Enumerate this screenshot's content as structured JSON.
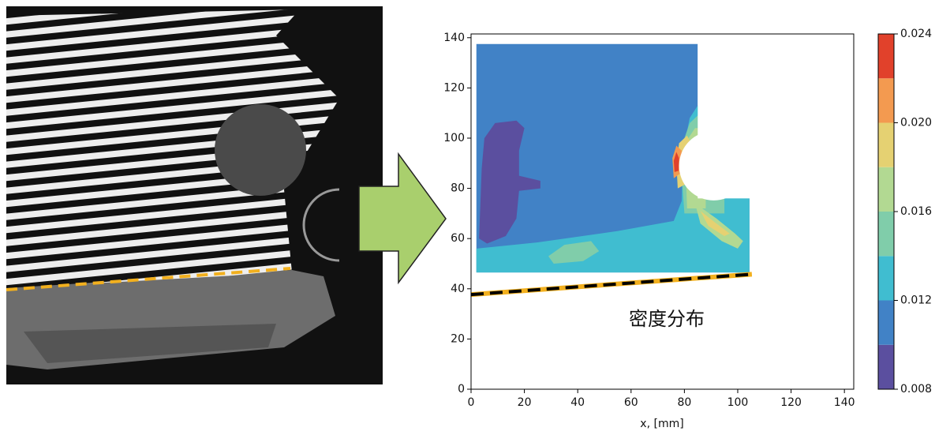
{
  "chart_data": {
    "type": "contour",
    "xlabel": "x, [mm]",
    "annotation": "密度分布",
    "xlim": [
      0,
      143.5
    ],
    "ylim": [
      0,
      141.5
    ],
    "xticks": [
      0,
      20,
      40,
      60,
      80,
      100,
      120,
      140
    ],
    "yticks": [
      0,
      20,
      40,
      60,
      80,
      100,
      120,
      140
    ],
    "colorbar": {
      "levels": [
        0.008,
        0.01,
        0.012,
        0.014,
        0.016,
        0.018,
        0.02,
        0.022,
        0.024
      ],
      "colors": [
        "#5b4f9f",
        "#4182c6",
        "#40bdd0",
        "#80cdaa",
        "#b2d992",
        "#e5d172",
        "#f39a50",
        "#e1412b"
      ],
      "ticks": [
        0.008,
        0.012,
        0.016,
        {
          "value": 0.02,
          "label": "0.020"
        },
        0.024
      ]
    },
    "regions": [
      {
        "value": 0.01,
        "points": [
          [
            2,
            46.5
          ],
          [
            2,
            137.5
          ],
          [
            85,
            137.5
          ],
          [
            85,
            76
          ],
          [
            104.4,
            76
          ],
          [
            104.4,
            46.5
          ]
        ]
      },
      {
        "value": 0.012,
        "points": [
          [
            2,
            46.5
          ],
          [
            2,
            56
          ],
          [
            25,
            58.5
          ],
          [
            55,
            63
          ],
          [
            76,
            67
          ],
          [
            79,
            75
          ],
          [
            79.5,
            95
          ],
          [
            82,
            108
          ],
          [
            85,
            113
          ],
          [
            104.4,
            113
          ],
          [
            104.4,
            46.5
          ]
        ]
      },
      {
        "value": 0.014,
        "points": [
          [
            80,
            70
          ],
          [
            79,
            85
          ],
          [
            80,
            100
          ],
          [
            82,
            106
          ],
          [
            85,
            109
          ],
          [
            95,
            109
          ],
          [
            95,
            70
          ]
        ]
      },
      {
        "value": 0.014,
        "points": [
          [
            29,
            53
          ],
          [
            35,
            57.5
          ],
          [
            45,
            59
          ],
          [
            48,
            55
          ],
          [
            42,
            51
          ],
          [
            31,
            50
          ]
        ]
      },
      {
        "value": 0.016,
        "points": [
          [
            81,
            72
          ],
          [
            80.5,
            88
          ],
          [
            81.5,
            100
          ],
          [
            84,
            104
          ],
          [
            88,
            104
          ],
          [
            88,
            72
          ]
        ]
      },
      {
        "value": 0.016,
        "points": [
          [
            84,
            74
          ],
          [
            92,
            68
          ],
          [
            99,
            62
          ],
          [
            102,
            59
          ],
          [
            100,
            56
          ],
          [
            94,
            59
          ],
          [
            86,
            66
          ]
        ]
      },
      {
        "value": 0.018,
        "points": [
          [
            77.5,
            80
          ],
          [
            77,
            90
          ],
          [
            78,
            98
          ],
          [
            81,
            101
          ],
          [
            83,
            97
          ],
          [
            81,
            90
          ],
          [
            81,
            82
          ]
        ]
      },
      {
        "value": 0.018,
        "points": [
          [
            86,
            71
          ],
          [
            92,
            66
          ],
          [
            97,
            62
          ],
          [
            95,
            61
          ],
          [
            89,
            65
          ]
        ]
      },
      {
        "value": 0.02,
        "points": [
          [
            76,
            84
          ],
          [
            75.5,
            92
          ],
          [
            77,
            97
          ],
          [
            79,
            95
          ],
          [
            78.5,
            86
          ]
        ]
      },
      {
        "value": 0.022,
        "points": [
          [
            76.3,
            86.5
          ],
          [
            76,
            91
          ],
          [
            77,
            94.5
          ],
          [
            78,
            92
          ],
          [
            77.8,
            87
          ]
        ]
      },
      {
        "value": 0.008,
        "points": [
          [
            3,
            60
          ],
          [
            4,
            88
          ],
          [
            5,
            100
          ],
          [
            9,
            106
          ],
          [
            17,
            107
          ],
          [
            20,
            104
          ],
          [
            18,
            95
          ],
          [
            18,
            85
          ],
          [
            26,
            83
          ],
          [
            26,
            80
          ],
          [
            18,
            79
          ],
          [
            17,
            68
          ],
          [
            13,
            61
          ],
          [
            6,
            58
          ]
        ]
      }
    ],
    "line": {
      "x": [
        0,
        105.3
      ],
      "y": [
        37.7,
        45.8
      ]
    }
  }
}
